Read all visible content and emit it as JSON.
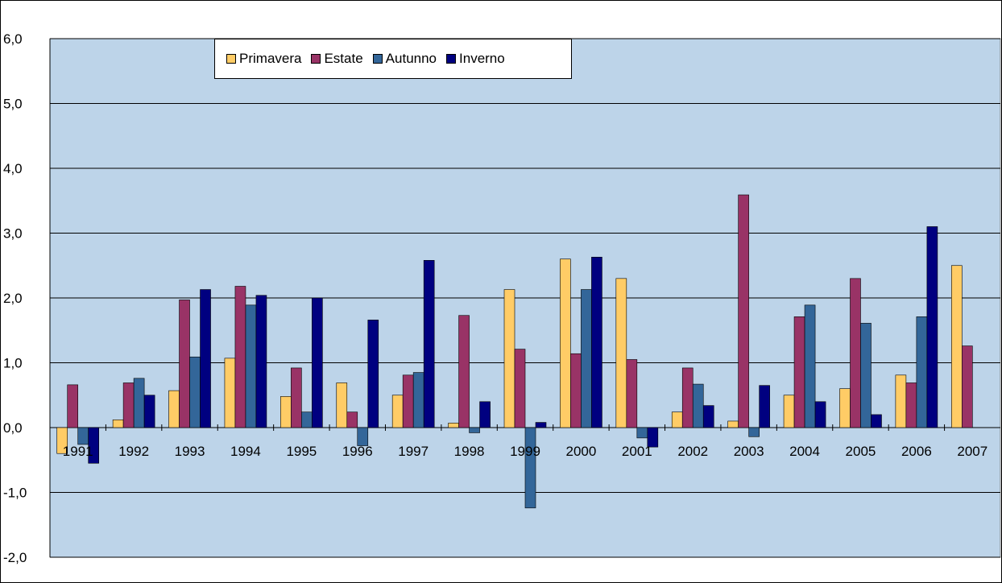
{
  "chart_data": {
    "type": "bar",
    "title": "",
    "xlabel": "",
    "ylabel": "",
    "ylim": [
      -2.0,
      6.0
    ],
    "ytick_step": 1.0,
    "yticks": [
      "6,0",
      "5,0",
      "4,0",
      "3,0",
      "2,0",
      "1,0",
      "0,0",
      "-1,0",
      "-2,0"
    ],
    "grid": true,
    "legend_position": "top-left",
    "categories": [
      "1991",
      "1992",
      "1993",
      "1994",
      "1995",
      "1996",
      "1997",
      "1998",
      "1999",
      "2000",
      "2001",
      "2002",
      "2003",
      "2004",
      "2005",
      "2006",
      "2007"
    ],
    "series": [
      {
        "name": "Primavera",
        "color": "#FFCC66",
        "values": [
          -0.4,
          0.12,
          0.57,
          1.07,
          0.48,
          0.69,
          0.5,
          0.07,
          2.13,
          2.6,
          2.3,
          0.24,
          0.1,
          0.5,
          0.6,
          0.81,
          2.5
        ]
      },
      {
        "name": "Estate",
        "color": "#993366",
        "values": [
          0.66,
          0.69,
          1.97,
          2.18,
          0.92,
          0.24,
          0.81,
          1.73,
          1.21,
          1.14,
          1.05,
          0.92,
          3.59,
          1.71,
          2.3,
          0.69,
          1.26
        ]
      },
      {
        "name": "Autunno",
        "color": "#336699",
        "values": [
          -0.26,
          0.76,
          1.09,
          1.89,
          0.24,
          -0.28,
          0.85,
          -0.08,
          -1.24,
          2.13,
          -0.16,
          0.67,
          -0.14,
          1.89,
          1.61,
          1.71,
          null
        ]
      },
      {
        "name": "Inverno",
        "color": "#000080",
        "values": [
          -0.55,
          0.5,
          2.13,
          2.04,
          2.0,
          1.66,
          2.58,
          0.4,
          0.08,
          2.63,
          -0.3,
          0.34,
          0.65,
          0.4,
          0.2,
          3.1,
          null
        ]
      }
    ]
  },
  "colors": {
    "plot_background": "#BDD4E9",
    "gridline": "#000000"
  }
}
